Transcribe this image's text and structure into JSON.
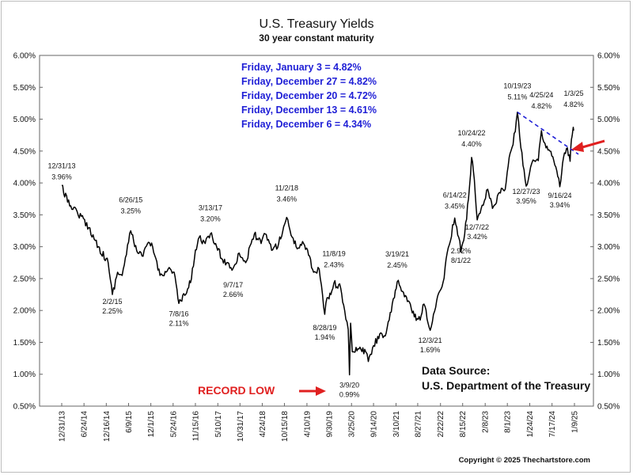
{
  "chart_data": {
    "type": "line",
    "title": "U.S. Treasury Yields",
    "subtitle": "30 year constant maturity",
    "ylim": [
      0.5,
      6.0
    ],
    "y_ticks": [
      "0.50%",
      "1.00%",
      "1.50%",
      "2.00%",
      "2.50%",
      "3.00%",
      "3.50%",
      "4.00%",
      "4.50%",
      "5.00%",
      "5.50%",
      "6.00%"
    ],
    "x_ticks": [
      "12/31/13",
      "6/24/14",
      "12/16/14",
      "6/9/15",
      "12/1/15",
      "5/24/16",
      "11/15/16",
      "5/10/17",
      "10/31/17",
      "4/24/18",
      "10/15/18",
      "4/10/19",
      "9/30/19",
      "3/25/20",
      "9/14/20",
      "3/10/21",
      "8/27/21",
      "2/22/22",
      "8/15/22",
      "2/8/23",
      "8/1/23",
      "1/24/24",
      "7/17/24",
      "1/9/25"
    ],
    "x_range": [
      "12/31/13",
      "1/9/25"
    ],
    "grid": false,
    "series": [
      {
        "color": "#000000",
        "points": [
          [
            "12/31/13",
            3.96
          ],
          [
            "2/15/14",
            3.7
          ],
          [
            "5/1/14",
            3.55
          ],
          [
            "8/1/14",
            3.3
          ],
          [
            "10/15/14",
            3.0
          ],
          [
            "12/31/14",
            2.75
          ],
          [
            "2/2/15",
            2.25
          ],
          [
            "3/15/15",
            2.6
          ],
          [
            "4/20/15",
            2.55
          ],
          [
            "6/26/15",
            3.25
          ],
          [
            "8/20/15",
            2.9
          ],
          [
            "10/1/15",
            2.85
          ],
          [
            "11/5/15",
            3.05
          ],
          [
            "12/15/15",
            3.0
          ],
          [
            "2/11/16",
            2.55
          ],
          [
            "4/15/16",
            2.65
          ],
          [
            "6/1/16",
            2.6
          ],
          [
            "7/8/16",
            2.11
          ],
          [
            "8/31/16",
            2.25
          ],
          [
            "10/15/16",
            2.5
          ],
          [
            "11/15/16",
            2.95
          ],
          [
            "12/15/16",
            3.15
          ],
          [
            "1/31/17",
            3.05
          ],
          [
            "3/13/17",
            3.2
          ],
          [
            "5/1/17",
            3.0
          ],
          [
            "6/15/17",
            2.8
          ],
          [
            "9/7/17",
            2.66
          ],
          [
            "10/25/17",
            2.9
          ],
          [
            "12/15/17",
            2.75
          ],
          [
            "2/21/18",
            3.2
          ],
          [
            "4/15/18",
            3.05
          ],
          [
            "5/17/18",
            3.2
          ],
          [
            "7/15/18",
            2.95
          ],
          [
            "8/31/18",
            3.05
          ],
          [
            "11/2/18",
            3.46
          ],
          [
            "12/15/18",
            3.15
          ],
          [
            "1/15/19",
            3.0
          ],
          [
            "3/15/19",
            3.05
          ],
          [
            "4/15/19",
            2.95
          ],
          [
            "6/1/19",
            2.6
          ],
          [
            "7/15/19",
            2.65
          ],
          [
            "8/28/19",
            1.94
          ],
          [
            "9/15/19",
            2.2
          ],
          [
            "10/15/19",
            2.25
          ],
          [
            "11/8/19",
            2.43
          ],
          [
            "12/31/19",
            2.35
          ],
          [
            "1/31/20",
            2.0
          ],
          [
            "2/28/20",
            1.7
          ],
          [
            "3/9/20",
            0.99
          ],
          [
            "3/18/20",
            1.8
          ],
          [
            "3/31/20",
            1.35
          ],
          [
            "5/15/20",
            1.4
          ],
          [
            "7/15/20",
            1.35
          ],
          [
            "8/4/20",
            1.2
          ],
          [
            "9/15/20",
            1.45
          ],
          [
            "11/10/20",
            1.65
          ],
          [
            "12/15/20",
            1.6
          ],
          [
            "1/15/21",
            1.85
          ],
          [
            "2/25/21",
            2.2
          ],
          [
            "3/19/21",
            2.45
          ],
          [
            "4/30/21",
            2.3
          ],
          [
            "6/15/21",
            2.15
          ],
          [
            "7/31/21",
            1.9
          ],
          [
            "9/15/21",
            1.85
          ],
          [
            "10/15/21",
            2.1
          ],
          [
            "12/3/21",
            1.69
          ],
          [
            "1/15/22",
            2.05
          ],
          [
            "2/15/22",
            2.3
          ],
          [
            "3/15/22",
            2.45
          ],
          [
            "4/15/22",
            2.9
          ],
          [
            "6/14/22",
            3.45
          ],
          [
            "7/15/22",
            3.15
          ],
          [
            "8/1/22",
            2.92
          ],
          [
            "8/31/22",
            3.2
          ],
          [
            "9/30/22",
            3.75
          ],
          [
            "10/24/22",
            4.4
          ],
          [
            "11/15/22",
            4.05
          ],
          [
            "12/7/22",
            3.42
          ],
          [
            "1/15/23",
            3.65
          ],
          [
            "2/28/23",
            3.9
          ],
          [
            "4/6/23",
            3.6
          ],
          [
            "5/31/23",
            3.85
          ],
          [
            "7/15/23",
            3.9
          ],
          [
            "8/15/23",
            4.4
          ],
          [
            "9/15/23",
            4.6
          ],
          [
            "10/19/23",
            5.11
          ],
          [
            "11/15/23",
            4.55
          ],
          [
            "12/27/23",
            3.95
          ],
          [
            "1/31/24",
            4.25
          ],
          [
            "2/28/24",
            4.35
          ],
          [
            "3/31/24",
            4.35
          ],
          [
            "4/25/24",
            4.82
          ],
          [
            "5/31/24",
            4.55
          ],
          [
            "6/30/24",
            4.5
          ],
          [
            "7/31/24",
            4.35
          ],
          [
            "8/31/24",
            4.1
          ],
          [
            "9/16/24",
            3.94
          ],
          [
            "10/15/24",
            4.4
          ],
          [
            "11/15/24",
            4.55
          ],
          [
            "12/6/24",
            4.34
          ],
          [
            "12/13/24",
            4.61
          ],
          [
            "12/20/24",
            4.72
          ],
          [
            "12/27/24",
            4.82
          ],
          [
            "1/3/25",
            4.82
          ]
        ]
      }
    ],
    "point_labels": [
      {
        "date": "12/31/13",
        "value": "3.96%"
      },
      {
        "date": "2/2/15",
        "value": "2.25%"
      },
      {
        "date": "6/26/15",
        "value": "3.25%"
      },
      {
        "date": "7/8/16",
        "value": "2.11%"
      },
      {
        "date": "3/13/17",
        "value": "3.20%"
      },
      {
        "date": "9/7/17",
        "value": "2.66%"
      },
      {
        "date": "11/2/18",
        "value": "3.46%"
      },
      {
        "date": "8/28/19",
        "value": "1.94%"
      },
      {
        "date": "11/8/19",
        "value": "2.43%"
      },
      {
        "date": "3/9/20",
        "value": "0.99%"
      },
      {
        "date": "3/19/21",
        "value": "2.45%"
      },
      {
        "date": "12/3/21",
        "value": "1.69%"
      },
      {
        "date": "6/14/22",
        "value": "3.45%"
      },
      {
        "date": "8/1/22",
        "value": "2.92%"
      },
      {
        "date": "10/24/22",
        "value": "4.40%"
      },
      {
        "date": "12/7/22",
        "value": "3.42%"
      },
      {
        "date": "10/19/23",
        "value": "5.11%"
      },
      {
        "date": "12/27/23",
        "value": "3.95%"
      },
      {
        "date": "4/25/24",
        "value": "4.82%"
      },
      {
        "date": "9/16/24",
        "value": "3.94%"
      },
      {
        "date": "1/3/25",
        "value": "4.82%"
      }
    ],
    "callouts": [
      "Friday, January 3 = 4.82%",
      "Friday, December 27 = 4.82%",
      "Friday, December 20 = 4.72%",
      "Friday, December 13 = 4.61%",
      "Friday, December 6 = 4.34%"
    ],
    "trendline": {
      "from": [
        "10/19/23",
        5.11
      ],
      "to": [
        "1/3/25",
        4.45
      ],
      "style": "dashed",
      "color": "#1f1fd6"
    },
    "annotations": {
      "record_low": "RECORD LOW",
      "source_heading": "Data Source:",
      "source": "U.S. Department of the Treasury",
      "copyright": "Copyright © 2025 Thechartstore.com"
    },
    "colors": {
      "callout": "#1f1fd6",
      "highlight": "#e02020",
      "line": "#000000",
      "axis": "#666666"
    }
  }
}
